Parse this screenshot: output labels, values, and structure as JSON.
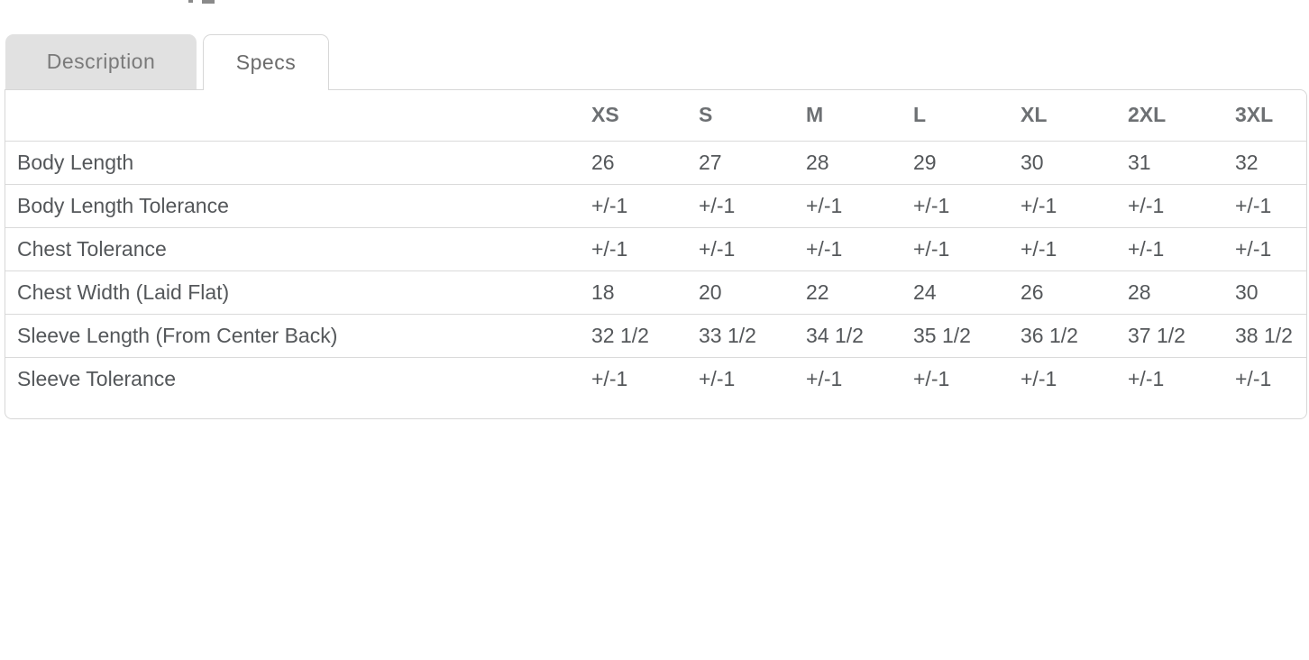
{
  "colors": {
    "tab_inactive_bg": "#e1e1e1",
    "tab_inactive_text": "#7a7a7a",
    "tab_active_text": "#6b6b6b",
    "panel_border": "#d7d7d7",
    "row_divider": "#dadada",
    "header_text": "#6d7073",
    "cell_text": "#54575a"
  },
  "tabs": {
    "description": {
      "label": "Description",
      "active": false
    },
    "specs": {
      "label": "Specs",
      "active": true
    }
  },
  "spec_table": {
    "columns": [
      "XS",
      "S",
      "M",
      "L",
      "XL",
      "2XL",
      "3XL"
    ],
    "rows": [
      {
        "label": "Body Length",
        "values": [
          "26",
          "27",
          "28",
          "29",
          "30",
          "31",
          "32"
        ]
      },
      {
        "label": "Body Length Tolerance",
        "values": [
          "+/-1",
          "+/-1",
          "+/-1",
          "+/-1",
          "+/-1",
          "+/-1",
          "+/-1"
        ]
      },
      {
        "label": "Chest Tolerance",
        "values": [
          "+/-1",
          "+/-1",
          "+/-1",
          "+/-1",
          "+/-1",
          "+/-1",
          "+/-1"
        ]
      },
      {
        "label": "Chest Width (Laid Flat)",
        "values": [
          "18",
          "20",
          "22",
          "24",
          "26",
          "28",
          "30"
        ]
      },
      {
        "label": "Sleeve Length (From Center Back)",
        "values": [
          "32 1/2",
          "33 1/2",
          "34 1/2",
          "35 1/2",
          "36 1/2",
          "37 1/2",
          "38 1/2"
        ]
      },
      {
        "label": "Sleeve Tolerance",
        "values": [
          "+/-1",
          "+/-1",
          "+/-1",
          "+/-1",
          "+/-1",
          "+/-1",
          "+/-1"
        ]
      }
    ]
  }
}
